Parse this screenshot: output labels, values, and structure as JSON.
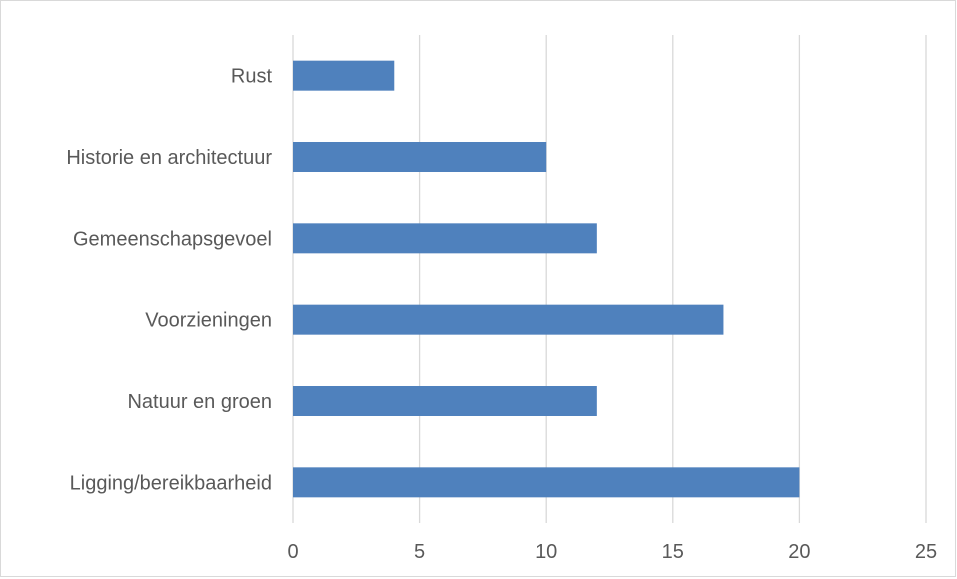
{
  "chart_data": {
    "type": "bar",
    "orientation": "horizontal",
    "categories": [
      "Rust",
      "Historie en architectuur",
      "Gemeenschapsgevoel",
      "Voorzieningen",
      "Natuur en groen",
      "Ligging/bereikbaarheid"
    ],
    "values": [
      4,
      10,
      12,
      17,
      12,
      20
    ],
    "xlim": [
      0,
      25
    ],
    "xticks": [
      0,
      5,
      10,
      15,
      20,
      25
    ],
    "grid": "vertical",
    "legend": "none",
    "colors": {
      "bar": "#4f81bd",
      "grid": "#d9d9d9",
      "text": "#595959",
      "border": "#d9d9d9"
    }
  }
}
